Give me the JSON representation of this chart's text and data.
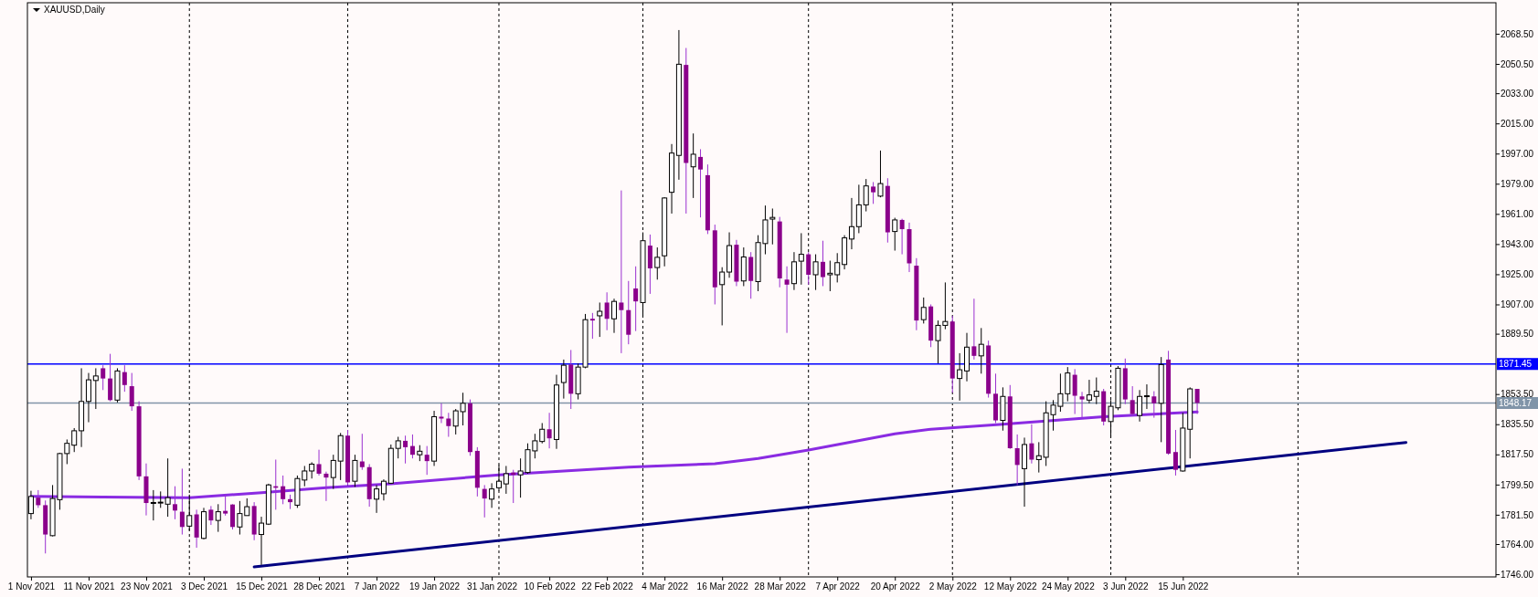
{
  "chart_data": {
    "type": "candlestick",
    "title": "XAUUSD,Daily",
    "colors": [
      "#ffffff",
      "#8b008b",
      "#8b008b",
      "#ffffff",
      "#ffffff",
      "#ffffff",
      "#ffffff",
      "#ffffff",
      "#ffffff",
      "#ffffff",
      "#8b008b",
      "#8b008b",
      "#ffffff",
      "#8b008b",
      "#8b008b",
      "#8b008b",
      "#8b008b",
      "#ffffff",
      "#ffffff",
      "#ffffff",
      "#8b008b",
      "#8b008b",
      "#ffffff",
      "#8b008b",
      "#ffffff",
      "#8b008b",
      "#ffffff",
      "#8b008b",
      "#8b008b",
      "#ffffff",
      "#ffffff",
      "#8b008b",
      "#ffffff",
      "#ffffff",
      "#8b008b",
      "#8b008b",
      "#8b008b",
      "#ffffff",
      "#ffffff",
      "#ffffff",
      "#8b008b",
      "#8b008b",
      "#ffffff",
      "#ffffff",
      "#8b008b",
      "#ffffff",
      "#8b008b",
      "#8b008b",
      "#ffffff",
      "#ffffff",
      "#ffffff",
      "#ffffff",
      "#8b008b",
      "#8b008b",
      "#ffffff",
      "#8b008b",
      "#ffffff",
      "#8b008b",
      "#8b008b",
      "#ffffff",
      "#ffffff",
      "#8b008b",
      "#8b008b",
      "#8b008b",
      "#ffffff",
      "#ffffff",
      "#ffffff",
      "#8b008b",
      "#ffffff",
      "#ffffff",
      "#ffffff",
      "#ffffff",
      "#8b008b",
      "#ffffff",
      "#ffffff",
      "#8b008b",
      "#ffffff",
      "#ffffff",
      "#8b008b",
      "#ffffff",
      "#8b008b",
      "#ffffff",
      "#8b008b",
      "#8b008b",
      "#8b008b",
      "#ffffff",
      "#8b008b",
      "#ffffff",
      "#ffffff",
      "#ffffff",
      "#ffffff",
      "#8b008b",
      "#ffffff",
      "#8b008b",
      "#8b008b",
      "#8b008b",
      "#ffffff",
      "#ffffff",
      "#8b008b",
      "#ffffff",
      "#8b008b",
      "#ffffff",
      "#ffffff",
      "#ffffff",
      "#8b008b",
      "#8b008b",
      "#ffffff",
      "#ffffff",
      "#8b008b",
      "#ffffff",
      "#8b008b",
      "#ffffff",
      "#ffffff",
      "#ffffff",
      "#ffffff",
      "#ffffff",
      "#ffffff",
      "#8b008b",
      "#ffffff",
      "#8b008b",
      "#ffffff",
      "#8b008b",
      "#8b008b",
      "#8b008b",
      "#ffffff",
      "#8b008b",
      "#ffffff",
      "#ffffff",
      "#8b008b",
      "#ffffff",
      "#ffffff",
      "#8b008b",
      "#ffffff",
      "#8b008b",
      "#8b008b",
      "#ffffff",
      "#8b008b",
      "#8b008b",
      "#ffffff",
      "#8b008b",
      "#ffffff",
      "#ffffff",
      "#ffffff",
      "#ffffff",
      "#ffffff",
      "#8b008b",
      "#8b008b",
      "#ffffff",
      "#ffffff",
      "#8b008b",
      "#ffffff",
      "#ffffff",
      "#8b008b",
      "#8b008b",
      "#ffffff",
      "#ffffff",
      "#8b008b",
      "#ffffff",
      "#8b008b",
      "#8b008b",
      "#ffffff",
      "#ffffff",
      "#8b008b",
      null,
      null,
      null,
      null,
      null,
      null,
      null,
      null,
      null,
      null,
      null,
      null,
      null,
      null,
      null,
      null,
      null,
      null,
      null,
      null,
      null,
      null,
      null,
      null,
      null,
      null,
      null,
      null,
      null,
      null,
      null,
      null,
      null,
      null,
      null,
      null,
      null,
      null,
      null,
      null,
      null
    ],
    "categories": [
      "1 Nov 2021",
      null,
      null,
      null,
      null,
      null,
      null,
      null,
      "11 Nov 2021",
      null,
      null,
      null,
      null,
      null,
      null,
      null,
      "23 Nov 2021",
      null,
      null,
      null,
      null,
      null,
      null,
      null,
      "3 Dec 2021",
      null,
      null,
      null,
      null,
      null,
      null,
      null,
      "15 Dec 2021",
      null,
      null,
      null,
      null,
      null,
      null,
      null,
      "28 Dec 2021",
      null,
      null,
      null,
      null,
      null,
      null,
      null,
      "7 Jan 2022",
      null,
      null,
      null,
      null,
      null,
      null,
      null,
      "19 Jan 2022",
      null,
      null,
      null,
      null,
      null,
      null,
      null,
      "31 Jan 2022",
      null,
      null,
      null,
      null,
      null,
      null,
      null,
      "10 Feb 2022",
      null,
      null,
      null,
      null,
      null,
      null,
      null,
      "22 Feb 2022",
      null,
      null,
      null,
      null,
      null,
      null,
      null,
      "4 Mar 2022",
      null,
      null,
      null,
      null,
      null,
      null,
      null,
      "16 Mar 2022",
      null,
      null,
      null,
      null,
      null,
      null,
      null,
      "28 Mar 2022",
      null,
      null,
      null,
      null,
      null,
      null,
      null,
      "7 Apr 2022",
      null,
      null,
      null,
      null,
      null,
      null,
      null,
      "20 Apr 2022",
      null,
      null,
      null,
      null,
      null,
      null,
      null,
      "2 May 2022",
      null,
      null,
      null,
      null,
      null,
      null,
      null,
      "12 May 2022",
      null,
      null,
      null,
      null,
      null,
      null,
      null,
      "24 May 2022",
      null,
      null,
      null,
      null,
      null,
      null,
      null,
      "3 Jun 2022",
      null,
      null,
      null,
      null,
      null,
      null,
      null,
      "15 Jun 2022",
      null,
      null,
      null,
      null,
      null,
      null,
      null,
      null,
      null,
      null,
      null,
      null,
      null,
      null,
      null,
      null,
      null,
      null,
      null,
      null,
      null,
      null,
      null,
      null,
      null,
      null,
      null,
      null,
      null,
      null,
      null,
      null,
      null,
      null,
      null,
      null,
      null,
      null,
      null,
      null,
      null,
      null,
      null
    ],
    "ohlc": [
      [
        1782.2,
        1795.8,
        1778.8,
        1792.4
      ],
      [
        1791.7,
        1796.2,
        1785.6,
        1787.2
      ],
      [
        1787.2,
        1790,
        1758.4,
        1769.7
      ],
      [
        1769,
        1799.2,
        1768.6,
        1791.2
      ],
      [
        1790.5,
        1818.5,
        1784.5,
        1818
      ],
      [
        1818,
        1826.4,
        1811.7,
        1824.1
      ],
      [
        1823,
        1833.2,
        1818.9,
        1831.6
      ],
      [
        1831.6,
        1868.9,
        1821.9,
        1849.1
      ],
      [
        1849.1,
        1866.1,
        1836.7,
        1862
      ],
      [
        1861.6,
        1868.9,
        1844.6,
        1864.3
      ],
      [
        1868.9,
        1870.7,
        1855.9,
        1862.8
      ],
      [
        1862.8,
        1877.5,
        1849.2,
        1849.9
      ],
      [
        1849.9,
        1868.9,
        1848.5,
        1867.3
      ],
      [
        1866.6,
        1870.7,
        1854.9,
        1858.9
      ],
      [
        1858.2,
        1866.1,
        1843.5,
        1846.2
      ],
      [
        1846.2,
        1849.2,
        1802.2,
        1804.4
      ],
      [
        1804.4,
        1812.1,
        1781.1,
        1788.5
      ],
      [
        1788.5,
        1796.2,
        1778.1,
        1788.8
      ],
      [
        1788.8,
        1795.4,
        1785.6,
        1789
      ],
      [
        1787.8,
        1815.1,
        1780.3,
        1791.7
      ],
      [
        1787.8,
        1798.5,
        1778.8,
        1784
      ],
      [
        1783.3,
        1809,
        1769.7,
        1774.2
      ],
      [
        1774.7,
        1793.5,
        1772,
        1781
      ],
      [
        1781.7,
        1784.5,
        1761.8,
        1767.9
      ],
      [
        1767.4,
        1785.6,
        1766.8,
        1783.3
      ],
      [
        1784.5,
        1786.7,
        1775.4,
        1778.1
      ],
      [
        1778.1,
        1787.8,
        1771.3,
        1783.3
      ],
      [
        1783.8,
        1793.1,
        1781,
        1782.2
      ],
      [
        1787.6,
        1787.8,
        1772.7,
        1774.2
      ],
      [
        1774.2,
        1789.7,
        1769.7,
        1782.2
      ],
      [
        1781,
        1791.3,
        1781,
        1786.3
      ],
      [
        1786.7,
        1789,
        1766.3,
        1769.7
      ],
      [
        1769.7,
        1780.3,
        1751.6,
        1776.5
      ],
      [
        1775.9,
        1800,
        1775.4,
        1799.3
      ],
      [
        1798.5,
        1814.4,
        1784.5,
        1797.6
      ],
      [
        1798.5,
        1804.9,
        1787.8,
        1790.8
      ],
      [
        1790.8,
        1793.5,
        1784.9,
        1789
      ],
      [
        1787.2,
        1804.9,
        1785.6,
        1803.1
      ],
      [
        1802.2,
        1810.6,
        1798.5,
        1807.6
      ],
      [
        1807.6,
        1812.8,
        1803.1,
        1811.7
      ],
      [
        1811.7,
        1820.3,
        1804.9,
        1806
      ],
      [
        1806,
        1807.2,
        1789.7,
        1803.7
      ],
      [
        1803.7,
        1817.3,
        1796.9,
        1813.9
      ],
      [
        1813.5,
        1830.3,
        1802.2,
        1828.7
      ],
      [
        1828.7,
        1832.1,
        1799.3,
        1800.8
      ],
      [
        1801.5,
        1817.3,
        1798.1,
        1813.9
      ],
      [
        1813.3,
        1829.8,
        1808.3,
        1809.9
      ],
      [
        1809.9,
        1811.7,
        1786.3,
        1790.8
      ],
      [
        1790.8,
        1799.2,
        1782.6,
        1796.9
      ],
      [
        1794,
        1802.6,
        1790,
        1801.5
      ],
      [
        1800.3,
        1823.4,
        1799.9,
        1821.1
      ],
      [
        1821.1,
        1828,
        1815.1,
        1825.6
      ],
      [
        1825.6,
        1828.7,
        1812.1,
        1821.8
      ],
      [
        1822.5,
        1829.4,
        1815.1,
        1817.3
      ],
      [
        1817.3,
        1823,
        1813.5,
        1819.4
      ],
      [
        1817.3,
        1822.5,
        1805.3,
        1813.5
      ],
      [
        1813.5,
        1843.5,
        1810.6,
        1840
      ],
      [
        1840,
        1848,
        1836.2,
        1838.9
      ],
      [
        1838.9,
        1842.3,
        1828,
        1834.4
      ],
      [
        1834.4,
        1844.6,
        1829.4,
        1843.5
      ],
      [
        1843,
        1854.3,
        1834.8,
        1848
      ],
      [
        1848,
        1850.3,
        1816.7,
        1818.9
      ],
      [
        1819.6,
        1821.8,
        1792.4,
        1797.6
      ],
      [
        1796.9,
        1799.2,
        1779.9,
        1791.2
      ],
      [
        1790.8,
        1800.3,
        1785.6,
        1796.9
      ],
      [
        1797.6,
        1811.2,
        1795.8,
        1801.5
      ],
      [
        1799.9,
        1810.6,
        1794,
        1806
      ],
      [
        1806.7,
        1808.3,
        1788.5,
        1805.3
      ],
      [
        1805.3,
        1815.1,
        1791.7,
        1807.6
      ],
      [
        1806.7,
        1824.1,
        1806,
        1820.3
      ],
      [
        1819.6,
        1829.8,
        1815.1,
        1825.6
      ],
      [
        1825.2,
        1836.2,
        1824.1,
        1832.5
      ],
      [
        1832.5,
        1842.3,
        1821.1,
        1827.1
      ],
      [
        1826.4,
        1865,
        1820.8,
        1858.9
      ],
      [
        1860.4,
        1874.1,
        1850.8,
        1870.7
      ],
      [
        1871.1,
        1879.8,
        1844.6,
        1853.7
      ],
      [
        1853.7,
        1871.8,
        1850.3,
        1869.6
      ],
      [
        1869.6,
        1901.3,
        1868.9,
        1897.9
      ],
      [
        1898.4,
        1901.9,
        1886.5,
        1897.4
      ],
      [
        1900.2,
        1908.1,
        1887.6,
        1902.9
      ],
      [
        1908.1,
        1914.2,
        1891.6,
        1898.4
      ],
      [
        1898.4,
        1910.4,
        1890,
        1908.8
      ],
      [
        1908.1,
        1975,
        1877.9,
        1903.6
      ],
      [
        1903.6,
        1921,
        1883.2,
        1888.9
      ],
      [
        1916.5,
        1929.7,
        1891.1,
        1908.8
      ],
      [
        1908.1,
        1950,
        1900.2,
        1945
      ],
      [
        1942.1,
        1948.7,
        1913.3,
        1928.5
      ],
      [
        1929,
        1941,
        1921.8,
        1935.1
      ],
      [
        1936,
        1971,
        1929.7,
        1970.5
      ],
      [
        1973.9,
        2002.7,
        1961.2,
        1997.3
      ],
      [
        1995.9,
        2070.7,
        1981.4,
        2050.3
      ],
      [
        2049.9,
        2060,
        1961.2,
        1991.4
      ],
      [
        1989.1,
        2009,
        1970.5,
        1996.6
      ],
      [
        1995,
        1999.6,
        1958.9,
        1987.5
      ],
      [
        1984.1,
        1990.5,
        1949,
        1951.2
      ],
      [
        1951.2,
        1954.6,
        1907,
        1917.2
      ],
      [
        1918.8,
        1929.2,
        1894.5,
        1926.3
      ],
      [
        1926.3,
        1950,
        1922.9,
        1942.1
      ],
      [
        1942.6,
        1945.5,
        1917.9,
        1920.6
      ],
      [
        1921,
        1941,
        1917.9,
        1935.3
      ],
      [
        1935.3,
        1938.2,
        1910.4,
        1921
      ],
      [
        1920.6,
        1948.3,
        1914.9,
        1943.9
      ],
      [
        1943.3,
        1966,
        1936.9,
        1957.4
      ],
      [
        1957.9,
        1964.2,
        1942.8,
        1958.9
      ],
      [
        1956.5,
        1959.2,
        1917.2,
        1922.5
      ],
      [
        1921.8,
        1929.7,
        1890,
        1918.8
      ],
      [
        1919.4,
        1938.2,
        1915.6,
        1932.4
      ],
      [
        1932.8,
        1949.5,
        1918.8,
        1936.9
      ],
      [
        1936.9,
        1938.2,
        1918.8,
        1924.7
      ],
      [
        1924.7,
        1936.9,
        1915.6,
        1932.4
      ],
      [
        1932.4,
        1945,
        1917.9,
        1923.3
      ],
      [
        1924.7,
        1933.1,
        1914.9,
        1925.6
      ],
      [
        1924.7,
        1937.6,
        1920.1,
        1931.9
      ],
      [
        1930.8,
        1948.3,
        1927.9,
        1946.7
      ],
      [
        1946,
        1970.5,
        1939.9,
        1953.4
      ],
      [
        1953.4,
        1978.4,
        1949.5,
        1966.4
      ],
      [
        1966.4,
        1981.8,
        1962.5,
        1977.7
      ],
      [
        1977.3,
        1980,
        1967,
        1973.9
      ],
      [
        1971.6,
        1998.8,
        1970.9,
        1979.1
      ],
      [
        1977.7,
        1982.3,
        1943.9,
        1950
      ],
      [
        1950.5,
        1958.7,
        1939.1,
        1957.4
      ],
      [
        1957.4,
        1958.1,
        1936.9,
        1951.9
      ],
      [
        1951.9,
        1955.8,
        1926.3,
        1931.5
      ],
      [
        1930.1,
        1934.6,
        1891.6,
        1897.4
      ],
      [
        1897.9,
        1911.1,
        1895.6,
        1905.2
      ],
      [
        1905.8,
        1907,
        1881.5,
        1885.4
      ],
      [
        1885.4,
        1897.4,
        1871.8,
        1894.5
      ],
      [
        1894.5,
        1920.1,
        1892.2,
        1896.8
      ],
      [
        1896.8,
        1900.2,
        1854.3,
        1862.8
      ],
      [
        1862.8,
        1877.9,
        1849.6,
        1868
      ],
      [
        1867.3,
        1890,
        1861.1,
        1881.5
      ],
      [
        1882,
        1910.4,
        1874.1,
        1876.3
      ],
      [
        1876.3,
        1892.9,
        1865.7,
        1883.2
      ],
      [
        1882.5,
        1885.4,
        1851.4,
        1853.7
      ],
      [
        1853.7,
        1865.7,
        1836.2,
        1837.8
      ],
      [
        1837.8,
        1857.5,
        1831.7,
        1852.1
      ],
      [
        1852.1,
        1858.9,
        1820.8,
        1821.2
      ],
      [
        1821.2,
        1829.4,
        1799.2,
        1811.2
      ],
      [
        1809,
        1827.5,
        1786.3,
        1823.4
      ],
      [
        1824.1,
        1835.5,
        1812.1,
        1814.4
      ],
      [
        1814.4,
        1824.8,
        1806.7,
        1816.7
      ],
      [
        1815.8,
        1849.2,
        1810.6,
        1842.3
      ],
      [
        1841.2,
        1849.9,
        1831.7,
        1846.9
      ],
      [
        1846.2,
        1865.7,
        1843,
        1853.7
      ],
      [
        1853.7,
        1869.6,
        1849.2,
        1866.1
      ],
      [
        1865,
        1868.4,
        1841.6,
        1852.5
      ],
      [
        1852.1,
        1854.8,
        1839.4,
        1850.3
      ],
      [
        1849.9,
        1862,
        1848,
        1853
      ],
      [
        1852.1,
        1863.4,
        1847.5,
        1855.2
      ],
      [
        1855.2,
        1856.6,
        1834.8,
        1837.1
      ],
      [
        1837.1,
        1849.9,
        1828,
        1846.2
      ],
      [
        1845.3,
        1870.2,
        1843.9,
        1868.9
      ],
      [
        1868.9,
        1874.7,
        1847.5,
        1850.3
      ],
      [
        1849.9,
        1858.2,
        1840.7,
        1841.6
      ],
      [
        1840.7,
        1855.9,
        1837.1,
        1852.1
      ],
      [
        1852.1,
        1859.3,
        1844.6,
        1852.5
      ],
      [
        1852.1,
        1855.2,
        1839.4,
        1848
      ],
      [
        1848,
        1875.6,
        1824.8,
        1871.1
      ],
      [
        1874.1,
        1879.3,
        1817.3,
        1818
      ],
      [
        1818.9,
        1832.1,
        1804.9,
        1808.3
      ],
      [
        1807.6,
        1842.3,
        1807.2,
        1833.2
      ],
      [
        1832.5,
        1857.5,
        1815.1,
        1856.6
      ],
      [
        1856.6,
        1856.6,
        1841.6,
        1848.2
      ],
      null,
      null,
      null,
      null,
      null,
      null,
      null,
      null,
      null,
      null,
      null,
      null,
      null,
      null,
      null,
      null,
      null,
      null,
      null,
      null,
      null,
      null,
      null,
      null,
      null,
      null,
      null,
      null,
      null,
      null,
      null,
      null,
      null,
      null,
      null,
      null,
      null,
      null,
      null,
      null,
      null
    ],
    "series": [
      {
        "type": "line",
        "color": "#8a2be2",
        "values": [
          1792.4,
          null,
          null,
          null,
          null,
          null,
          null,
          null,
          null,
          null,
          1792,
          null,
          null,
          null,
          null,
          null,
          null,
          null,
          null,
          null,
          null,
          null,
          1791.7,
          null,
          null,
          null,
          null,
          null,
          null,
          null,
          null,
          null,
          1794.6,
          null,
          null,
          null,
          null,
          null,
          null,
          null,
          null,
          1797.6,
          null,
          null,
          null,
          null,
          null,
          null,
          null,
          null,
          1800,
          null,
          null,
          null,
          null,
          null,
          null,
          null,
          null,
          null,
          null,
          null,
          null,
          null,
          null,
          1805.3,
          null,
          null,
          null,
          null,
          null,
          null,
          null,
          null,
          null,
          null,
          null,
          null,
          null,
          null,
          null,
          null,
          null,
          1809.9,
          null,
          null,
          null,
          null,
          null,
          null,
          null,
          null,
          null,
          null,
          null,
          1812,
          null,
          null,
          null,
          null,
          null,
          1815.1,
          null,
          null,
          null,
          null,
          null,
          null,
          1820.1,
          null,
          null,
          null,
          null,
          null,
          null,
          null,
          null,
          null,
          null,
          null,
          1829.8,
          null,
          null,
          null,
          null,
          1832.5,
          null,
          null,
          null,
          null,
          null,
          null,
          null,
          null,
          null,
          1835.5,
          null,
          null,
          null,
          null,
          null,
          null,
          null,
          null,
          null,
          null,
          null,
          null,
          null,
          1840,
          null,
          null,
          null,
          null,
          null,
          null,
          null,
          null,
          null,
          null,
          null,
          null,
          1842.8,
          null,
          null,
          null,
          null,
          null,
          null,
          null,
          null,
          null,
          null,
          null,
          null,
          null,
          null,
          null,
          null,
          null,
          null,
          null,
          null,
          null,
          null,
          null,
          null,
          null,
          null,
          null,
          null,
          null,
          null,
          null,
          null,
          null,
          null,
          null,
          null,
          null,
          null,
          null,
          null,
          null
        ]
      },
      {
        "type": "line",
        "color": "#000080",
        "values": [
          null,
          null,
          null,
          null,
          null,
          null,
          null,
          null,
          null,
          null,
          null,
          null,
          null,
          null,
          null,
          null,
          null,
          null,
          null,
          null,
          null,
          null,
          null,
          null,
          null,
          null,
          null,
          null,
          null,
          null,
          null,
          1750.4,
          null,
          null,
          null,
          null,
          null,
          null,
          null,
          null,
          null,
          null,
          null,
          null,
          null,
          null,
          null,
          null,
          null,
          null,
          null,
          null,
          null,
          null,
          null,
          null,
          null,
          null,
          null,
          null,
          null,
          null,
          null,
          null,
          null,
          null,
          null,
          null,
          null,
          null,
          null,
          null,
          null,
          null,
          null,
          null,
          null,
          null,
          null,
          null,
          null,
          null,
          null,
          null,
          null,
          null,
          null,
          null,
          null,
          null,
          null,
          null,
          null,
          null,
          null,
          null,
          null,
          null,
          null,
          null,
          null,
          null,
          null,
          null,
          null,
          null,
          null,
          null,
          null,
          null,
          null,
          null,
          null,
          null,
          null,
          null,
          null,
          null,
          null,
          null,
          null,
          null,
          null,
          null,
          null,
          null,
          null,
          null,
          null,
          null,
          null,
          null,
          null,
          null,
          null,
          null,
          null,
          null,
          null,
          null,
          null,
          null,
          null,
          null,
          null,
          null,
          null,
          null,
          null,
          null,
          null,
          null,
          null,
          null,
          null,
          null,
          null,
          null,
          null,
          null,
          null,
          null,
          null,
          null,
          null,
          null,
          null,
          null,
          null,
          null,
          null,
          null,
          null,
          null,
          null,
          null,
          null,
          null,
          null,
          null,
          null,
          null,
          null,
          null,
          null,
          null,
          null,
          null,
          null,
          null,
          null,
          1824.6,
          null,
          null,
          null,
          null,
          null,
          null,
          null,
          null,
          null,
          null,
          null,
          null
        ]
      }
    ],
    "ref_lines": [
      {
        "axis": "y",
        "value": 1871.45,
        "label": "1871.45",
        "color": "#0000ff"
      },
      {
        "axis": "y",
        "value": 1848.17,
        "label": "1848.17",
        "color": "#8094a8"
      }
    ],
    "ylim": [
      1744.4,
      2087
    ],
    "yticks": [
      {
        "value": 2068.5,
        "label": "2068.50"
      },
      {
        "value": 2050.5,
        "label": "2050.50"
      },
      {
        "value": 2033,
        "label": "2033.00"
      },
      {
        "value": 2015,
        "label": "2015.00"
      },
      {
        "value": 1997,
        "label": "1997.00"
      },
      {
        "value": 1979,
        "label": "1979.00"
      },
      {
        "value": 1961,
        "label": "1961.00"
      },
      {
        "value": 1943,
        "label": "1943.00"
      },
      {
        "value": 1925,
        "label": "1925.00"
      },
      {
        "value": 1907,
        "label": "1907.00"
      },
      {
        "value": 1889.5,
        "label": "1889.50"
      },
      {
        "value": 1853.5,
        "label": "1853.50"
      },
      {
        "value": 1835.5,
        "label": "1835.50"
      },
      {
        "value": 1817.5,
        "label": "1817.50"
      },
      {
        "value": 1799.5,
        "label": "1799.50"
      },
      {
        "value": 1781.5,
        "label": "1781.50"
      },
      {
        "value": 1764,
        "label": "1764.00"
      },
      {
        "value": 1746,
        "label": "1746.00"
      }
    ]
  }
}
